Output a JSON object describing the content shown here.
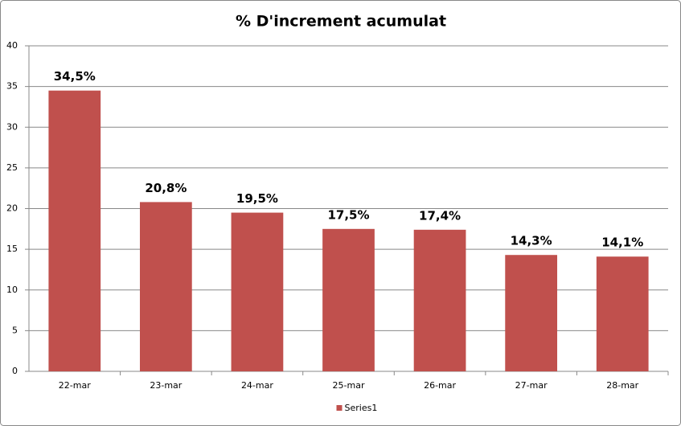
{
  "chart_data": {
    "type": "bar",
    "title": "% D'increment acumulat",
    "categories": [
      "22-mar",
      "23-mar",
      "24-mar",
      "25-mar",
      "26-mar",
      "27-mar",
      "28-mar"
    ],
    "series": [
      {
        "name": "Series1",
        "color": "#c0504d",
        "values": [
          34.5,
          20.8,
          19.5,
          17.5,
          17.4,
          14.3,
          14.1
        ],
        "value_labels": [
          "34,5%",
          "20,8%",
          "19,5%",
          "17,5%",
          "17,4%",
          "14,3%",
          "14,1%"
        ]
      }
    ],
    "ylim": [
      0,
      40
    ],
    "yticks": [
      0,
      5,
      10,
      15,
      20,
      25,
      30,
      35,
      40
    ],
    "grid": true,
    "legend": "bottom"
  }
}
